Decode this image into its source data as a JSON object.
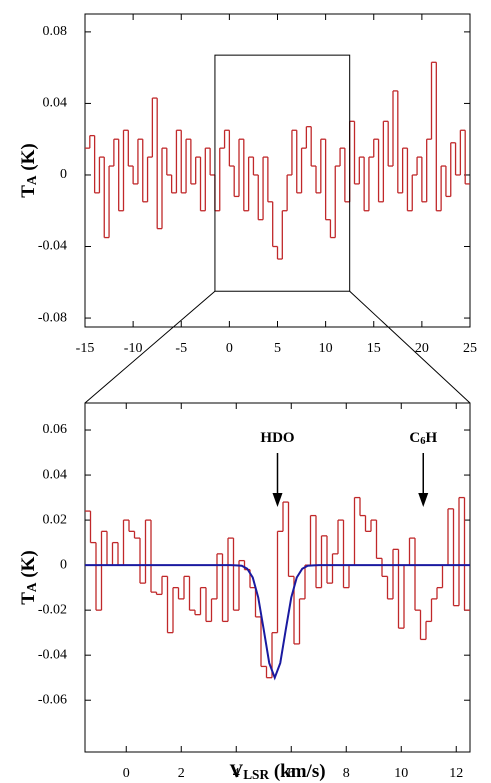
{
  "chart_data": [
    {
      "type": "step",
      "xlim": [
        -15,
        25
      ],
      "ylim": [
        -0.085,
        0.09
      ],
      "xticks": [
        -15,
        -10,
        -5,
        0,
        5,
        10,
        15,
        20,
        25
      ],
      "yticks": [
        0.08,
        0.04,
        0,
        -0.04,
        -0.08
      ],
      "ylabel": [
        "T",
        "A",
        " (K)"
      ],
      "zoom_ylim": [
        -0.065,
        0.067
      ],
      "spectrum": {
        "color": "#c0282a",
        "x": [
          -14.75,
          -14.25,
          -13.75,
          -13.25,
          -12.75,
          -12.25,
          -11.75,
          -11.25,
          -10.75,
          -10.25,
          -9.75,
          -9.25,
          -8.75,
          -8.25,
          -7.75,
          -7.25,
          -6.75,
          -6.25,
          -5.75,
          -5.25,
          -4.75,
          -4.25,
          -3.75,
          -3.25,
          -2.75,
          -2.25,
          -1.75,
          -1.25,
          -0.75,
          -0.25,
          0.25,
          0.75,
          1.25,
          1.75,
          2.25,
          2.75,
          3.25,
          3.75,
          4.25,
          4.75,
          5.25,
          5.75,
          6.25,
          6.75,
          7.25,
          7.75,
          8.25,
          8.75,
          9.25,
          9.75,
          10.25,
          10.75,
          11.25,
          11.75,
          12.25,
          12.75,
          13.25,
          13.75,
          14.25,
          14.75,
          15.25,
          15.75,
          16.25,
          16.75,
          17.25,
          17.75,
          18.25,
          18.75,
          19.25,
          19.75,
          20.25,
          20.75,
          21.25,
          21.75,
          22.25,
          22.75,
          23.25,
          23.75,
          24.25,
          24.75
        ],
        "values": [
          0.015,
          0.022,
          -0.01,
          0.01,
          -0.035,
          0.005,
          0.02,
          -0.02,
          0.025,
          0.005,
          -0.005,
          0.02,
          -0.015,
          0.01,
          0.043,
          -0.03,
          0.015,
          0.0,
          -0.01,
          0.025,
          -0.01,
          0.02,
          -0.005,
          0.01,
          -0.02,
          0.015,
          0.0,
          -0.02,
          0.015,
          0.025,
          0.005,
          -0.012,
          0.02,
          -0.02,
          0.01,
          0.0,
          -0.025,
          0.01,
          -0.015,
          -0.04,
          -0.047,
          -0.02,
          0.0,
          0.025,
          -0.01,
          0.015,
          0.027,
          0.005,
          -0.01,
          0.02,
          -0.025,
          -0.035,
          0.005,
          0.015,
          -0.015,
          0.03,
          -0.005,
          0.01,
          -0.02,
          0.01,
          0.02,
          -0.015,
          0.03,
          0.005,
          0.047,
          -0.01,
          0.015,
          -0.02,
          0.0,
          0.01,
          -0.015,
          0.02,
          0.063,
          -0.02,
          0.005,
          -0.012,
          0.018,
          0.0,
          0.025,
          -0.005
        ]
      }
    },
    {
      "type": "step",
      "xlim": [
        -1.5,
        12.5
      ],
      "ylim": [
        -0.083,
        0.072
      ],
      "xticks": [
        0,
        2,
        4,
        6,
        8,
        10,
        12
      ],
      "yticks": [
        0.06,
        0.04,
        0.02,
        0,
        -0.02,
        -0.04,
        -0.06
      ],
      "ylabel": [
        "T",
        "A",
        " (K)"
      ],
      "xlabel": [
        "V",
        "LSR",
        " (km/s)"
      ],
      "spectrum": {
        "color": "#c0282a",
        "x": [
          -1.4,
          -1.2,
          -1.0,
          -0.8,
          -0.6,
          -0.4,
          -0.2,
          0.0,
          0.2,
          0.4,
          0.6,
          0.8,
          1.0,
          1.2,
          1.4,
          1.6,
          1.8,
          2.0,
          2.2,
          2.4,
          2.6,
          2.8,
          3.0,
          3.2,
          3.4,
          3.6,
          3.8,
          4.0,
          4.2,
          4.4,
          4.6,
          4.8,
          5.0,
          5.2,
          5.4,
          5.6,
          5.8,
          6.0,
          6.2,
          6.4,
          6.6,
          6.8,
          7.0,
          7.2,
          7.4,
          7.6,
          7.8,
          8.0,
          8.2,
          8.4,
          8.6,
          8.8,
          9.0,
          9.2,
          9.4,
          9.6,
          9.8,
          10.0,
          10.2,
          10.4,
          10.6,
          10.8,
          11.0,
          11.2,
          11.4,
          11.6,
          11.8,
          12.0,
          12.2,
          12.4
        ],
        "values": [
          0.024,
          0.01,
          -0.02,
          0.015,
          0.0,
          0.01,
          0.0,
          0.02,
          0.015,
          0.012,
          -0.008,
          0.02,
          -0.012,
          -0.013,
          -0.005,
          -0.03,
          -0.01,
          -0.015,
          -0.005,
          -0.02,
          -0.022,
          -0.01,
          -0.025,
          -0.015,
          0.005,
          -0.025,
          0.012,
          -0.02,
          0.002,
          -0.002,
          -0.01,
          -0.023,
          -0.045,
          -0.05,
          -0.03,
          0.015,
          0.028,
          -0.005,
          -0.035,
          -0.015,
          0.0,
          0.022,
          -0.01,
          0.013,
          -0.008,
          0.005,
          0.02,
          -0.01,
          0.0,
          0.03,
          0.022,
          0.015,
          0.02,
          0.003,
          -0.005,
          -0.015,
          0.007,
          -0.028,
          0.0,
          0.012,
          -0.02,
          -0.033,
          -0.025,
          -0.015,
          -0.01,
          0.0,
          0.025,
          -0.018,
          0.03,
          -0.02
        ]
      },
      "fit": {
        "color": "#1a1aa0",
        "x": [
          -1.5,
          3.8,
          4.0,
          4.2,
          4.4,
          4.6,
          4.8,
          5.0,
          5.2,
          5.4,
          5.6,
          5.8,
          6.0,
          6.2,
          6.4,
          6.6,
          6.8,
          7.0,
          12.5
        ],
        "values": [
          0,
          0,
          -0.0001,
          -0.0003,
          -0.0016,
          -0.0055,
          -0.0144,
          -0.0287,
          -0.0435,
          -0.05,
          -0.0435,
          -0.0287,
          -0.0144,
          -0.0055,
          -0.0016,
          -0.0003,
          -0.0001,
          0,
          0
        ]
      },
      "annotations": [
        {
          "text": [
            "HDO"
          ],
          "x": 5.5
        },
        {
          "text": [
            "C",
            "6",
            "H"
          ],
          "x": 10.8
        }
      ]
    }
  ]
}
